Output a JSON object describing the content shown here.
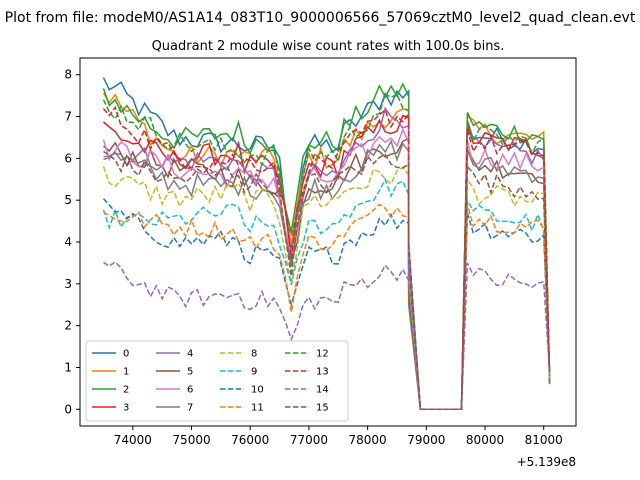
{
  "chart_data": {
    "type": "line",
    "suptitle": "Plot from file: modeM0/AS1A14_083T10_9000006566_57069cztM0_level2_quad_clean.evt",
    "title": "Quadrant 2 module wise count rates with 100.0s bins.",
    "xlabel": "",
    "ylabel": "",
    "x_offset_label": "+5.139e8",
    "xlim": [
      73100,
      81550
    ],
    "ylim": [
      -0.4,
      8.4
    ],
    "xticks": [
      74000,
      75000,
      76000,
      77000,
      78000,
      79000,
      80000,
      81000
    ],
    "yticks": [
      0,
      1,
      2,
      3,
      4,
      5,
      6,
      7,
      8
    ],
    "segments": [
      {
        "start": 73500,
        "end": 78700
      },
      {
        "start": 79700,
        "end": 81100
      }
    ],
    "gap_x": [
      78700,
      78900,
      79600,
      79700
    ],
    "dip_x": 76700,
    "legend_location": "lower-left",
    "legend_ncol": 4,
    "series": [
      {
        "name": "0",
        "style": "solid",
        "color": "#1f77b4",
        "level": 6.5,
        "start": 7.7,
        "peak": 7.5,
        "after_gap": 6.6
      },
      {
        "name": "1",
        "style": "solid",
        "color": "#ff7f0e",
        "level": 6.2,
        "start": 7.5,
        "peak": 7.0,
        "after_gap": 6.7
      },
      {
        "name": "2",
        "style": "solid",
        "color": "#2ca02c",
        "level": 6.6,
        "start": 7.6,
        "peak": 7.6,
        "after_gap": 6.8
      },
      {
        "name": "3",
        "style": "solid",
        "color": "#d62728",
        "level": 6.0,
        "start": 6.9,
        "peak": 6.8,
        "after_gap": 6.5
      },
      {
        "name": "4",
        "style": "solid",
        "color": "#9467bd",
        "level": 5.8,
        "start": 6.3,
        "peak": 7.0,
        "after_gap": 6.3
      },
      {
        "name": "5",
        "style": "solid",
        "color": "#8c564b",
        "level": 5.6,
        "start": 6.2,
        "peak": 6.3,
        "after_gap": 5.9
      },
      {
        "name": "6",
        "style": "solid",
        "color": "#e377c2",
        "level": 5.7,
        "start": 6.1,
        "peak": 6.5,
        "after_gap": 6.1
      },
      {
        "name": "7",
        "style": "solid",
        "color": "#7f7f7f",
        "level": 5.5,
        "start": 6.0,
        "peak": 6.2,
        "after_gap": 5.9
      },
      {
        "name": "8",
        "style": "dashed",
        "color": "#bcbd22",
        "level": 5.2,
        "start": 5.6,
        "peak": 5.6,
        "after_gap": 5.2
      },
      {
        "name": "9",
        "style": "dashed",
        "color": "#17becf",
        "level": 4.6,
        "start": 4.7,
        "peak": 5.3,
        "after_gap": 4.7
      },
      {
        "name": "10",
        "style": "dashed",
        "color": "#1f77b4",
        "level": 3.9,
        "start": 5.0,
        "peak": 4.5,
        "after_gap": 4.4
      },
      {
        "name": "11",
        "style": "dashed",
        "color": "#ff7f0e",
        "level": 4.2,
        "start": 4.7,
        "peak": 4.8,
        "after_gap": 4.6
      },
      {
        "name": "12",
        "style": "dashed",
        "color": "#2ca02c",
        "level": 6.3,
        "start": 7.2,
        "peak": 7.3,
        "after_gap": 6.6
      },
      {
        "name": "13",
        "style": "dashed",
        "color": "#d62728",
        "level": 6.1,
        "start": 7.0,
        "peak": 7.0,
        "after_gap": 6.4
      },
      {
        "name": "14",
        "style": "dashed",
        "color": "#9467bd",
        "level": 2.8,
        "start": 3.4,
        "peak": 3.3,
        "after_gap": 3.2
      },
      {
        "name": "15",
        "style": "dashed",
        "color": "#8c564b",
        "level": 5.6,
        "start": 6.2,
        "peak": 6.0,
        "after_gap": 5.5
      }
    ]
  }
}
